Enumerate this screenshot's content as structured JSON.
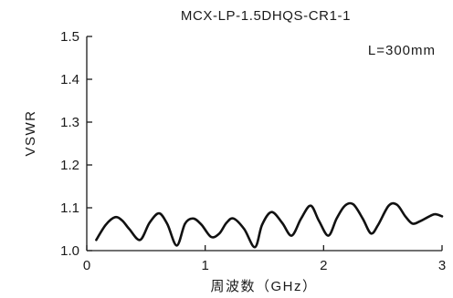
{
  "chart_data": {
    "type": "line",
    "title": "MCX-LP-1.5DHQS-CR1-1",
    "xlabel": "周波数（GHz）",
    "ylabel": "VSWR",
    "annotation": "L=300mm",
    "xlim": [
      0,
      3
    ],
    "ylim": [
      1.0,
      1.5
    ],
    "x_ticks": [
      0,
      1,
      2,
      3
    ],
    "x_tick_labels": [
      "0",
      "1",
      "2",
      "3"
    ],
    "y_ticks": [
      1.0,
      1.1,
      1.2,
      1.3,
      1.4,
      1.5
    ],
    "y_tick_labels": [
      "1.0",
      "1.1",
      "1.2",
      "1.3",
      "1.4",
      "1.5"
    ],
    "grid": false,
    "series": [
      {
        "color": "#111111",
        "x": [
          0.08,
          0.16,
          0.24,
          0.3,
          0.36,
          0.45,
          0.53,
          0.61,
          0.68,
          0.76,
          0.83,
          0.9,
          0.97,
          1.05,
          1.12,
          1.18,
          1.24,
          1.33,
          1.42,
          1.48,
          1.56,
          1.65,
          1.73,
          1.81,
          1.89,
          1.96,
          2.04,
          2.11,
          2.18,
          2.25,
          2.33,
          2.4,
          2.46,
          2.55,
          2.62,
          2.69,
          2.75,
          2.81,
          2.88,
          2.94,
          3.0
        ],
        "y": [
          1.025,
          1.06,
          1.078,
          1.07,
          1.05,
          1.025,
          1.065,
          1.087,
          1.062,
          1.012,
          1.063,
          1.075,
          1.06,
          1.032,
          1.04,
          1.065,
          1.075,
          1.05,
          1.008,
          1.06,
          1.09,
          1.065,
          1.035,
          1.075,
          1.105,
          1.07,
          1.035,
          1.075,
          1.105,
          1.108,
          1.075,
          1.04,
          1.06,
          1.105,
          1.107,
          1.08,
          1.063,
          1.068,
          1.078,
          1.085,
          1.08
        ]
      }
    ]
  }
}
